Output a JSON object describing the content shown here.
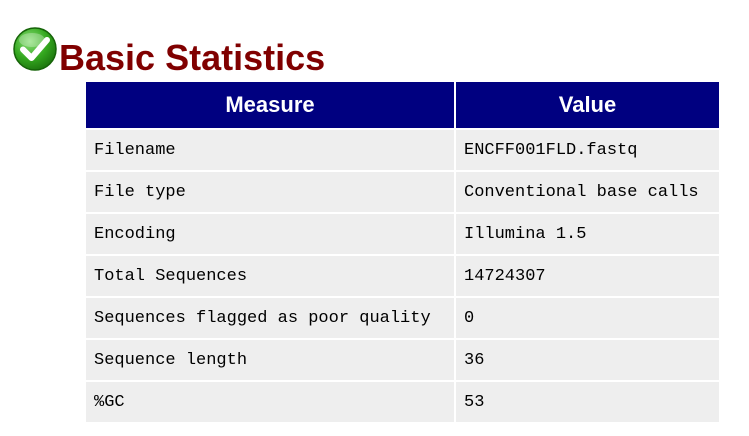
{
  "module": {
    "title": "Basic Statistics",
    "status_icon": "check-pass-icon",
    "status_color": "#2e9e17",
    "title_color": "#800000",
    "header_bg": "#000080",
    "row_bg": "#eeeeee"
  },
  "table": {
    "headers": {
      "measure": "Measure",
      "value": "Value"
    },
    "rows": [
      {
        "measure": "Filename",
        "value": "ENCFF001FLD.fastq"
      },
      {
        "measure": "File type",
        "value": "Conventional base calls"
      },
      {
        "measure": "Encoding",
        "value": "Illumina 1.5"
      },
      {
        "measure": "Total Sequences",
        "value": "14724307"
      },
      {
        "measure": "Sequences flagged as poor quality",
        "value": "0"
      },
      {
        "measure": "Sequence length",
        "value": "36"
      },
      {
        "measure": "%GC",
        "value": "53"
      }
    ]
  }
}
